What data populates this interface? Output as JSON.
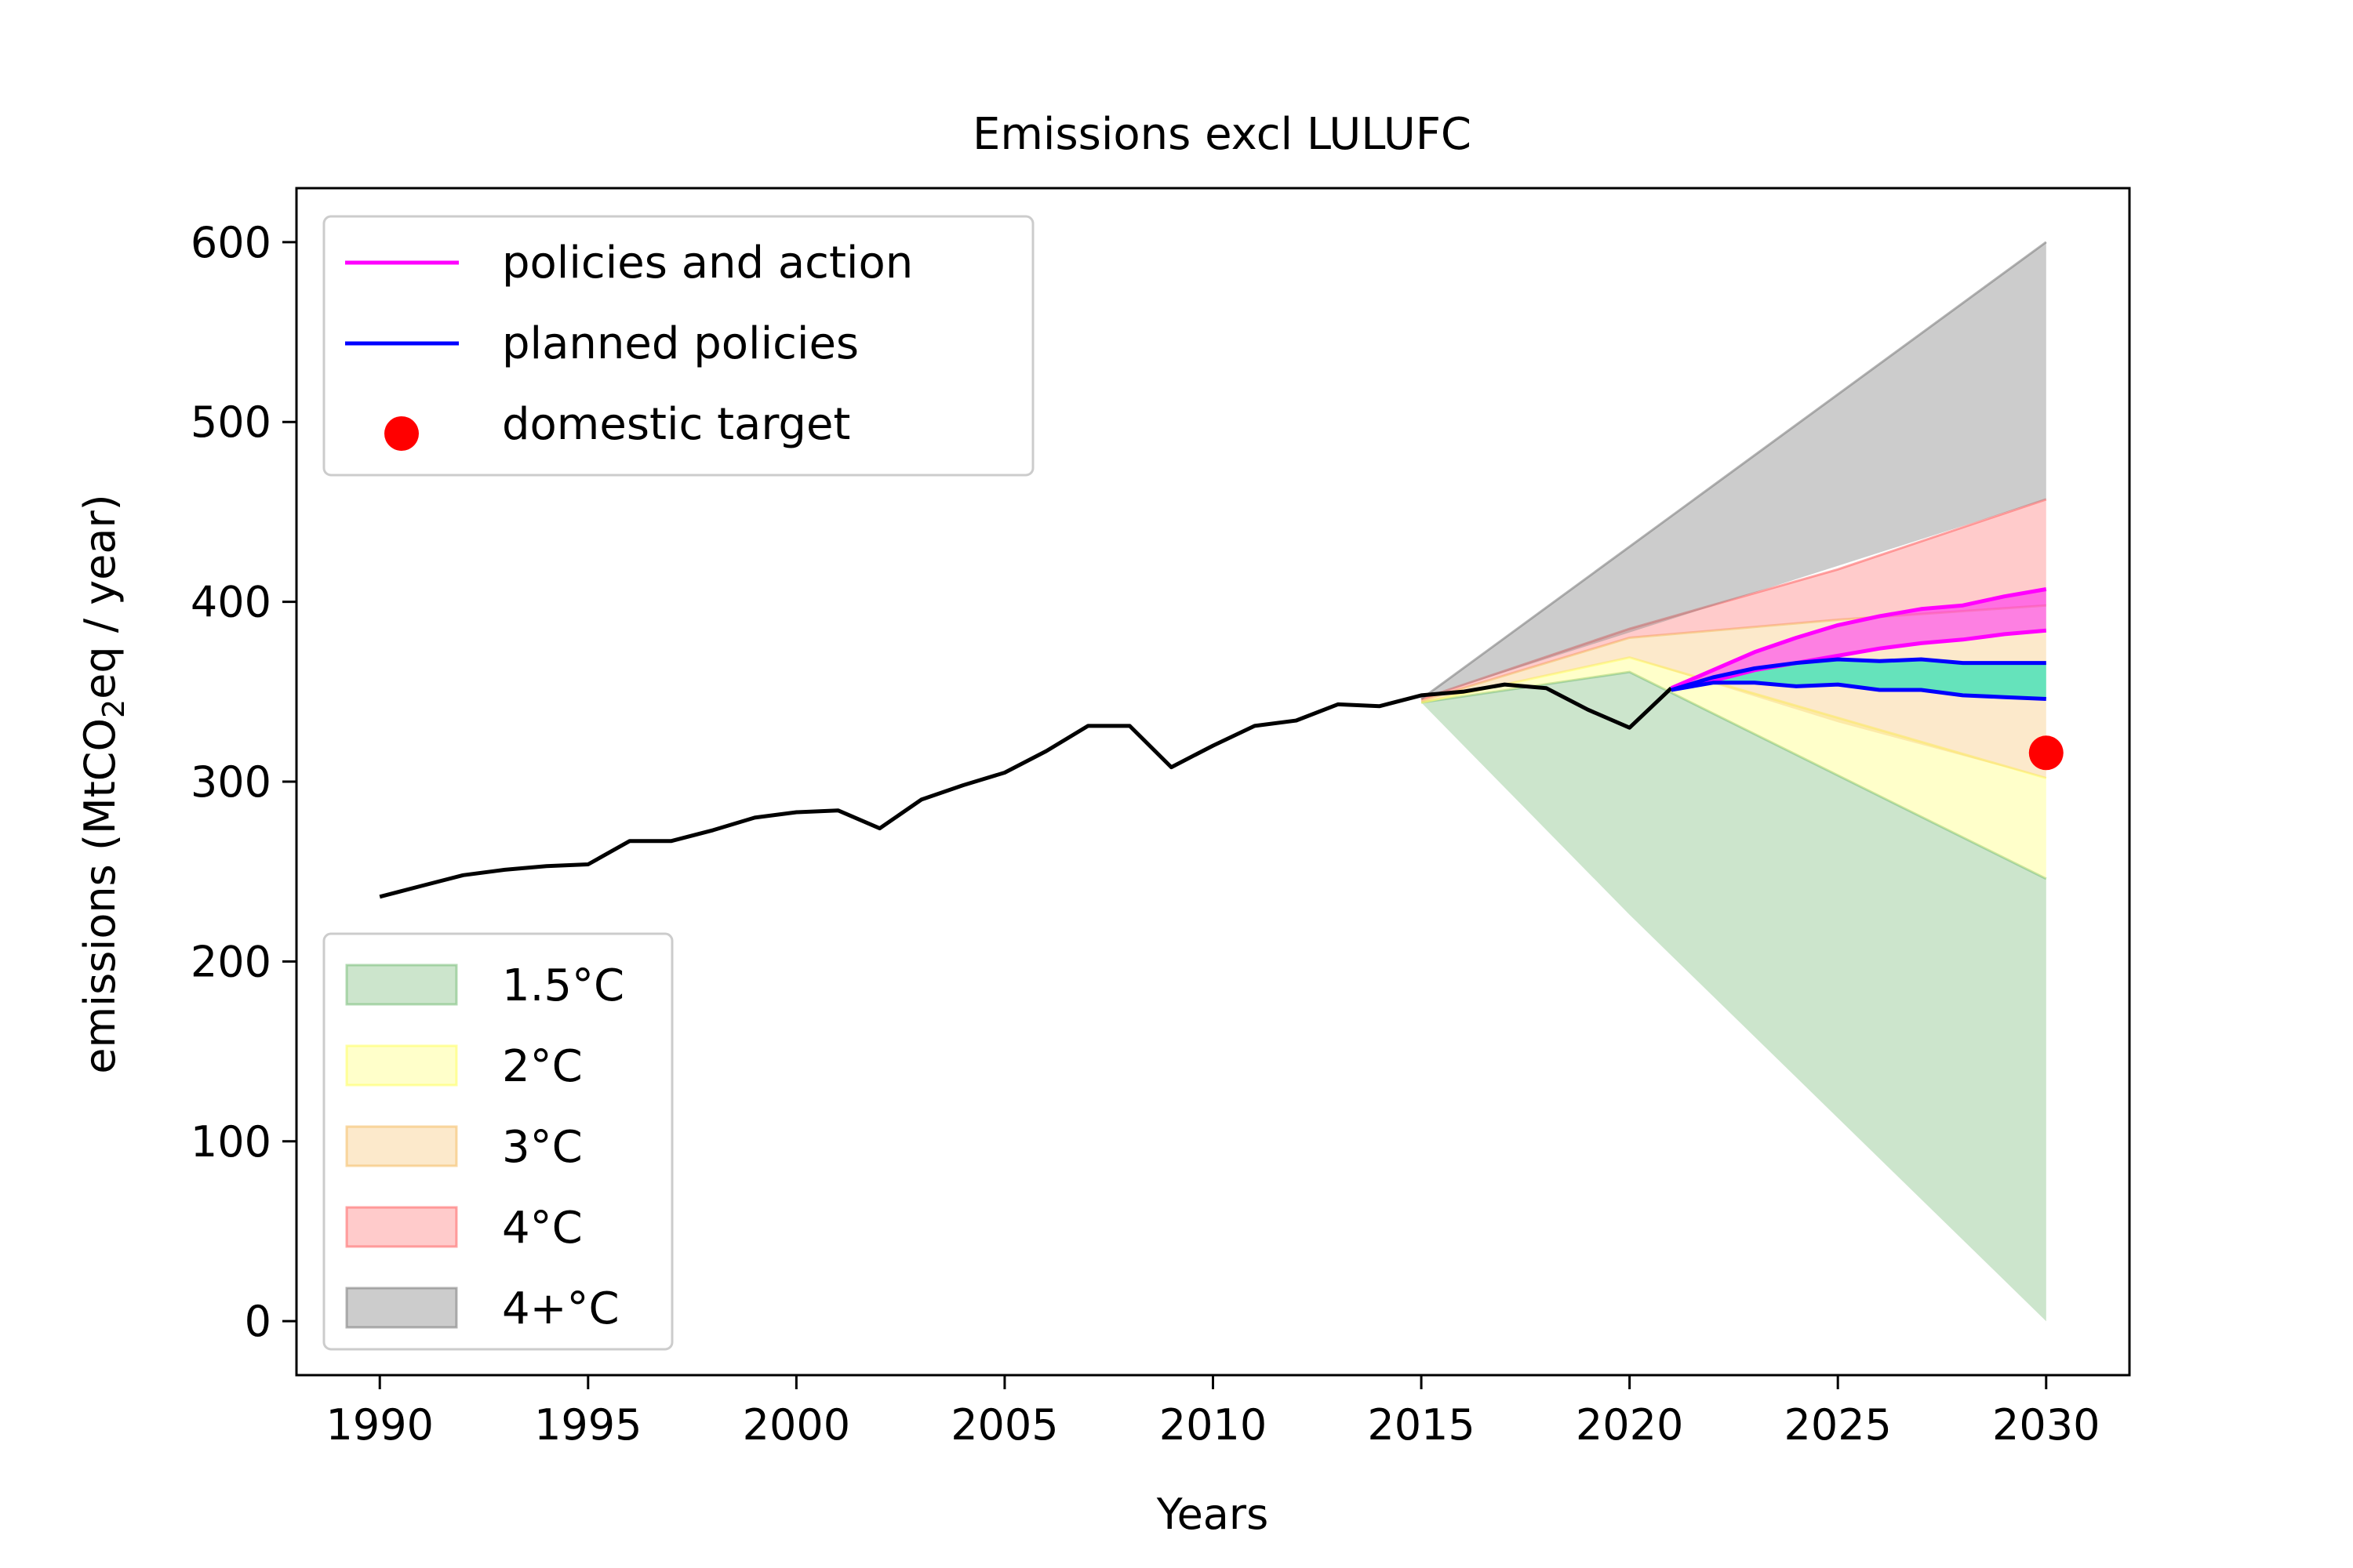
{
  "chart_data": {
    "type": "line",
    "title": "Emissions excl LULUFC",
    "xlabel": "Years",
    "ylabel_prefix": "emissions (MtCO",
    "ylabel_sub": "2",
    "ylabel_suffix": "eq / year)",
    "xlim": [
      1988,
      2032
    ],
    "ylim": [
      -30,
      630
    ],
    "x_ticks": [
      1990,
      1995,
      2000,
      2005,
      2010,
      2015,
      2020,
      2025,
      2030
    ],
    "y_ticks": [
      0,
      100,
      200,
      300,
      400,
      500,
      600
    ],
    "grid": false,
    "historical": {
      "color": "#000000",
      "x": [
        1990,
        1991,
        1992,
        1993,
        1994,
        1995,
        1996,
        1997,
        1998,
        1999,
        2000,
        2001,
        2002,
        2003,
        2004,
        2005,
        2006,
        2007,
        2008,
        2009,
        2010,
        2011,
        2012,
        2013,
        2014,
        2015,
        2016,
        2017,
        2018,
        2019,
        2020,
        2021
      ],
      "y": [
        236,
        242,
        248,
        251,
        253,
        254,
        267,
        267,
        273,
        280,
        283,
        284,
        274,
        290,
        298,
        305,
        317,
        331,
        331,
        308,
        320,
        331,
        334,
        343,
        342,
        348,
        350,
        354,
        352,
        340,
        330,
        352
      ]
    },
    "bands": [
      {
        "name": "1.5°C",
        "color": "#7fbf7f",
        "fill_opacity": 0.4,
        "x": [
          2015,
          2020,
          2030
        ],
        "lower": [
          344,
          226,
          0
        ],
        "upper": [
          344,
          361,
          246
        ]
      },
      {
        "name": "2°C",
        "color": "#ffff66",
        "fill_opacity": 0.35,
        "x": [
          2015,
          2020,
          2030
        ],
        "lower": [
          344,
          361,
          246
        ],
        "upper": [
          344,
          369,
          302
        ]
      },
      {
        "name": "3°C",
        "color": "#f5c06b",
        "fill_opacity": 0.35,
        "x": [
          2015,
          2020,
          2025,
          2030
        ],
        "lower": [
          344,
          369,
          333,
          302
        ],
        "upper": [
          345,
          380,
          390,
          398
        ]
      },
      {
        "name": "4°C",
        "color": "#ff6b6b",
        "fill_opacity": 0.35,
        "x": [
          2015,
          2020,
          2025,
          2030
        ],
        "lower": [
          345,
          380,
          390,
          398
        ],
        "upper": [
          346,
          385,
          418,
          457
        ]
      },
      {
        "name": "4+°C",
        "color": "#808080",
        "fill_opacity": 0.4,
        "x": [
          2015,
          2030
        ],
        "lower": [
          346,
          457
        ],
        "upper": [
          346,
          600
        ]
      }
    ],
    "range_fills": [
      {
        "color": "#ff00ff",
        "fill_opacity": 0.45,
        "x": [
          2021,
          2022,
          2023,
          2024,
          2025,
          2026,
          2027,
          2028,
          2029,
          2030
        ],
        "lower": [
          352,
          356,
          362,
          366,
          370,
          374,
          377,
          379,
          382,
          384
        ],
        "upper": [
          352,
          362,
          372,
          380,
          387,
          392,
          396,
          398,
          403,
          407
        ]
      },
      {
        "color": "#00e0b0",
        "fill_opacity": 0.6,
        "x": [
          2021,
          2022,
          2023,
          2024,
          2025,
          2026,
          2027,
          2028,
          2029,
          2030
        ],
        "lower": [
          351,
          355,
          355,
          353,
          354,
          351,
          351,
          348,
          347,
          346
        ],
        "upper": [
          351,
          358,
          363,
          366,
          368,
          367,
          368,
          366,
          366,
          366
        ]
      }
    ],
    "series": [
      {
        "name": "policies and action",
        "color": "#ff00ff",
        "x": [
          2021,
          2022,
          2023,
          2024,
          2025,
          2026,
          2027,
          2028,
          2029,
          2030
        ],
        "y": [
          352,
          362,
          372,
          380,
          387,
          392,
          396,
          398,
          403,
          407
        ]
      },
      {
        "color": "#ff00ff",
        "x": [
          2021,
          2022,
          2023,
          2024,
          2025,
          2026,
          2027,
          2028,
          2029,
          2030
        ],
        "y": [
          352,
          356,
          362,
          366,
          370,
          374,
          377,
          379,
          382,
          384
        ]
      },
      {
        "name": "planned policies",
        "color": "#0000ff",
        "x": [
          2021,
          2022,
          2023,
          2024,
          2025,
          2026,
          2027,
          2028,
          2029,
          2030
        ],
        "y": [
          351,
          358,
          363,
          366,
          368,
          367,
          368,
          366,
          366,
          366
        ]
      },
      {
        "color": "#0000ff",
        "x": [
          2021,
          2022,
          2023,
          2024,
          2025,
          2026,
          2027,
          2028,
          2029,
          2030
        ],
        "y": [
          351,
          355,
          355,
          353,
          354,
          351,
          351,
          348,
          347,
          346
        ]
      }
    ],
    "target": {
      "name": "domestic target",
      "color": "#ff0000",
      "x": 2030,
      "y": 316
    },
    "legend_lines_position": "top-left",
    "legend_bands_position": "bottom-left"
  }
}
